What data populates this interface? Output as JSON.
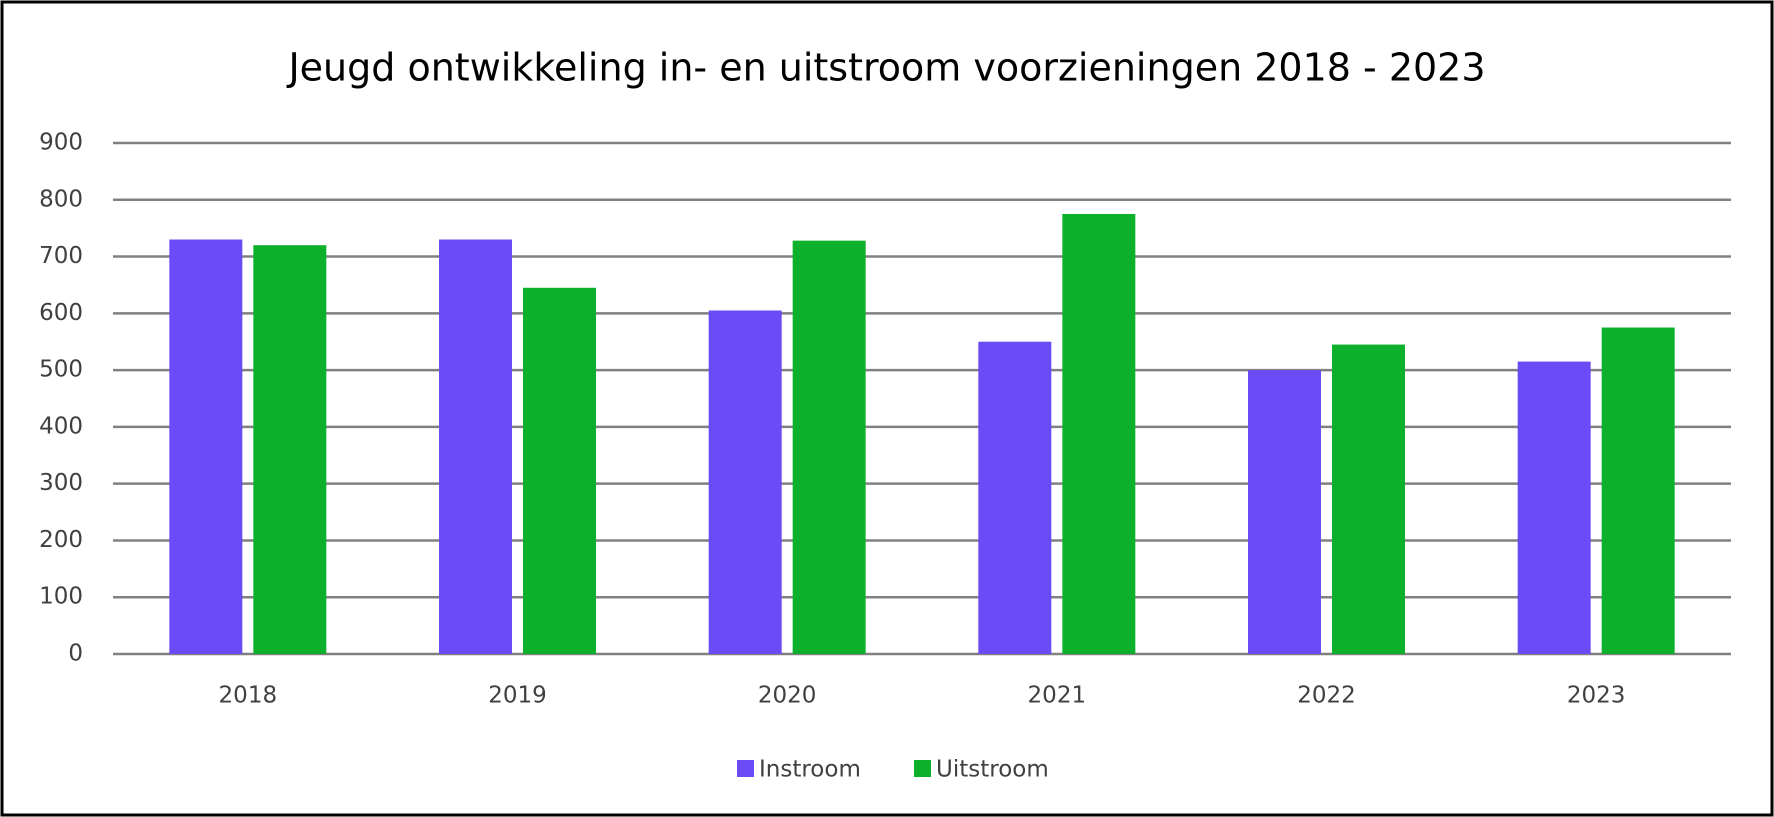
{
  "chart_data": {
    "type": "bar",
    "title": "Jeugd ontwikkeling in- en uitstroom voorzieningen  2018 - 2023",
    "categories": [
      "2018",
      "2019",
      "2020",
      "2021",
      "2022",
      "2023"
    ],
    "series": [
      {
        "name": "Instroom",
        "color": "#6a4bf5",
        "values": [
          730,
          730,
          605,
          550,
          500,
          515
        ]
      },
      {
        "name": "Uitstroom",
        "color": "#0db02b",
        "values": [
          720,
          645,
          728,
          775,
          545,
          575
        ]
      }
    ],
    "ylim": [
      0,
      900
    ],
    "yticks": [
      0,
      100,
      200,
      300,
      400,
      500,
      600,
      700,
      800,
      900
    ],
    "grid": true,
    "legend": "bottom"
  }
}
